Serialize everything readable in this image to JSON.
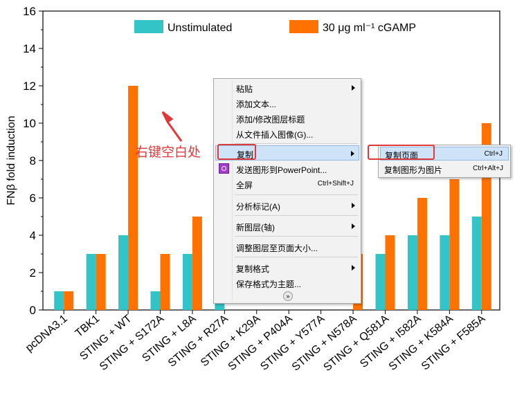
{
  "chart_data": {
    "type": "bar",
    "ylabel": "FNβ fold induction",
    "xlabel": "",
    "ylim": [
      0,
      16
    ],
    "yticks": [
      "0",
      "2",
      "4",
      "6",
      "8",
      "10",
      "12",
      "14",
      "16"
    ],
    "legend_position": "top",
    "categories": [
      "pcDNA3.1",
      "TBK1",
      "STING + WT",
      "STING + S172A",
      "STING + L8A",
      "STING + R27A",
      "STING + K29A",
      "STING + P404A",
      "STING + Y577A",
      "STING + N578A",
      "STING + Q581A",
      "STING + I582A",
      "STING + K584A",
      "STING + F585A"
    ],
    "series": [
      {
        "name": "Unstimulated",
        "color": "#33c4c8",
        "values": [
          1,
          3,
          4,
          1,
          3,
          4,
          null,
          null,
          null,
          null,
          3,
          4,
          4,
          5
        ]
      },
      {
        "name": "30 μg ml⁻¹ cGAMP",
        "color": "#ff7200",
        "values": [
          1,
          3,
          12,
          3,
          5,
          null,
          null,
          null,
          null,
          3,
          4,
          6,
          7,
          10
        ]
      }
    ]
  },
  "context_menu": {
    "items": [
      {
        "label": "粘贴",
        "has_submenu": true
      },
      {
        "label": "添加文本..."
      },
      {
        "label": "添加/修改图层标题"
      },
      {
        "label": "从文件插入图像(G)..."
      },
      {
        "label": "复制",
        "has_submenu": true
      },
      {
        "label": "发送图形到PowerPoint...",
        "icon": "powerpoint-icon"
      },
      {
        "label": "全屏",
        "shortcut": "Ctrl+Shift+J"
      },
      {
        "label": "分析标记(A)",
        "has_submenu": true
      },
      {
        "label": "新图层(轴)",
        "has_submenu": true
      },
      {
        "label": "调整图层至页面大小..."
      },
      {
        "label": "复制格式",
        "has_submenu": true
      },
      {
        "label": "保存格式为主题..."
      }
    ],
    "more_icon": "chevron-double-down-icon"
  },
  "submenu": {
    "items": [
      {
        "label": "复制页面",
        "shortcut": "Ctrl+J"
      },
      {
        "label": "复制图形为图片",
        "shortcut": "Ctrl+Alt+J"
      }
    ]
  },
  "annotation": {
    "text": "右键空白处",
    "color": "#e0393a"
  }
}
